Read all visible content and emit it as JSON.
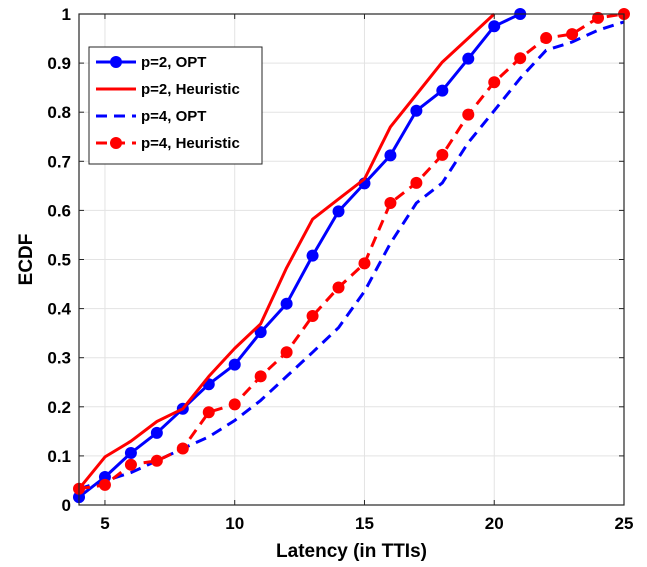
{
  "chart_data": {
    "type": "line",
    "xlabel": "Latency (in TTIs)",
    "ylabel": "ECDF",
    "xlim": [
      4,
      25
    ],
    "ylim": [
      0,
      1
    ],
    "xticks": [
      "5",
      "10",
      "15",
      "20",
      "25"
    ],
    "xtick_values": [
      5,
      10,
      15,
      20,
      25
    ],
    "yticks": [
      "0",
      "0.1",
      "0.2",
      "0.3",
      "0.4",
      "0.5",
      "0.6",
      "0.7",
      "0.8",
      "0.9",
      "1"
    ],
    "ytick_values": [
      0,
      0.1,
      0.2,
      0.3,
      0.4,
      0.5,
      0.6,
      0.7,
      0.8,
      0.9,
      1
    ],
    "grid": true,
    "legend_position": "top-left",
    "series": [
      {
        "name": "p=2, OPT",
        "color": "#0000ff",
        "line": "solid",
        "marker": "circle",
        "x": [
          4,
          5,
          6,
          7,
          8,
          9,
          10,
          11,
          12,
          13,
          14,
          15,
          16,
          17,
          18,
          19,
          20,
          21
        ],
        "y": [
          0.016,
          0.057,
          0.106,
          0.147,
          0.196,
          0.246,
          0.286,
          0.352,
          0.41,
          0.508,
          0.598,
          0.655,
          0.712,
          0.803,
          0.844,
          0.909,
          0.975,
          1.0
        ]
      },
      {
        "name": "p=2, Heuristic",
        "color": "#ff0000",
        "line": "solid",
        "marker": "none",
        "x": [
          4,
          5,
          6,
          7,
          8,
          9,
          10,
          11,
          12,
          13,
          14,
          15,
          16,
          17,
          18,
          19,
          20
        ],
        "y": [
          0.033,
          0.098,
          0.13,
          0.17,
          0.196,
          0.262,
          0.319,
          0.369,
          0.483,
          0.582,
          0.623,
          0.664,
          0.77,
          0.836,
          0.902,
          0.951,
          1.0
        ]
      },
      {
        "name": "p=4, OPT",
        "color": "#0000ff",
        "line": "dashed",
        "marker": "none",
        "x": [
          4,
          5,
          6,
          7,
          8,
          9,
          10,
          11,
          12,
          13,
          14,
          15,
          16,
          17,
          18,
          19,
          20,
          21,
          22,
          23,
          24,
          25
        ],
        "y": [
          0.033,
          0.049,
          0.066,
          0.09,
          0.115,
          0.139,
          0.172,
          0.213,
          0.262,
          0.311,
          0.361,
          0.435,
          0.533,
          0.615,
          0.656,
          0.738,
          0.803,
          0.869,
          0.926,
          0.943,
          0.967,
          0.984
        ]
      },
      {
        "name": "p=4, Heuristic",
        "color": "#ff0000",
        "line": "dashed",
        "marker": "circle",
        "x": [
          4,
          5,
          6,
          7,
          8,
          9,
          10,
          11,
          12,
          13,
          14,
          15,
          16,
          17,
          18,
          19,
          20,
          21,
          22,
          23,
          24,
          25
        ],
        "y": [
          0.033,
          0.041,
          0.082,
          0.09,
          0.115,
          0.189,
          0.205,
          0.262,
          0.311,
          0.385,
          0.443,
          0.492,
          0.615,
          0.656,
          0.713,
          0.795,
          0.861,
          0.91,
          0.951,
          0.959,
          0.992,
          1.0
        ]
      }
    ]
  }
}
